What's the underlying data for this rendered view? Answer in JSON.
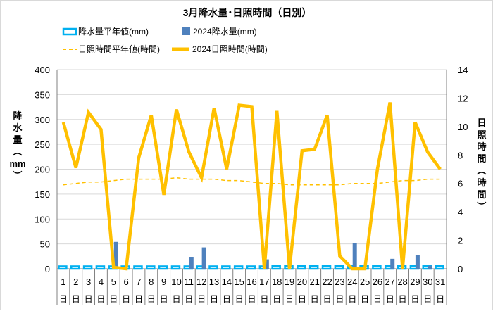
{
  "chart_data": {
    "type": "bar+line",
    "title": "3月降水量･日照時間（日別）",
    "left_axis": {
      "label_chars": [
        "降",
        "水",
        "量",
        "（",
        "mm",
        "）"
      ],
      "ticks": [
        0,
        50,
        100,
        150,
        200,
        250,
        300,
        350,
        400
      ],
      "range": [
        0,
        400
      ]
    },
    "right_axis": {
      "label_chars": [
        "日",
        "照",
        "時",
        "間",
        "（",
        "時",
        "間",
        "）"
      ],
      "ticks": [
        0,
        2,
        4,
        6,
        8,
        10,
        12,
        14
      ],
      "range": [
        0,
        14
      ]
    },
    "categories": [
      "1",
      "2",
      "3",
      "4",
      "5",
      "6",
      "7",
      "8",
      "9",
      "10",
      "11",
      "12",
      "13",
      "14",
      "15",
      "16",
      "17",
      "18",
      "19",
      "20",
      "21",
      "22",
      "23",
      "24",
      "25",
      "26",
      "27",
      "28",
      "29",
      "30",
      "31"
    ],
    "day_suffix": "日",
    "legend": [
      {
        "name": "降水量平年値(mm)",
        "style": "hollow-bar"
      },
      {
        "name": "2024降水量(mm)",
        "style": "bar"
      },
      {
        "name": "日照時間平年値(時間)",
        "style": "dashed-line"
      },
      {
        "name": "2024日照時間(時間)",
        "style": "line"
      }
    ],
    "series": [
      {
        "name": "降水量平年値(mm)",
        "axis": "left",
        "values": [
          5,
          5,
          5,
          5,
          5,
          5,
          5,
          5,
          5,
          5,
          5,
          5,
          5,
          5,
          5,
          5,
          5,
          6,
          6,
          6,
          6,
          6,
          6,
          6,
          6,
          6,
          6,
          6,
          6,
          6,
          6
        ]
      },
      {
        "name": "2024降水量(mm)",
        "axis": "left",
        "values": [
          0,
          0,
          0,
          0,
          54,
          0,
          0,
          0,
          0,
          0,
          24,
          43,
          0,
          0,
          0,
          0,
          19,
          0,
          0,
          0,
          0,
          0,
          0,
          52,
          0,
          0,
          20,
          0,
          28,
          6,
          0
        ]
      },
      {
        "name": "日照時間平年値(時間)",
        "axis": "right",
        "values": [
          5.9,
          6.0,
          6.1,
          6.1,
          6.2,
          6.3,
          6.3,
          6.3,
          6.3,
          6.4,
          6.3,
          6.3,
          6.3,
          6.2,
          6.2,
          6.1,
          6.0,
          6.0,
          5.9,
          5.9,
          5.9,
          5.9,
          5.9,
          6.0,
          6.0,
          6.0,
          6.1,
          6.2,
          6.2,
          6.3,
          6.3
        ]
      },
      {
        "name": "2024日照時間(時間)",
        "axis": "right",
        "values": [
          10.3,
          7.1,
          11.0,
          9.8,
          0.1,
          0.0,
          7.8,
          10.8,
          5.2,
          11.2,
          8.2,
          6.4,
          11.3,
          7.0,
          11.5,
          11.4,
          0.0,
          11.1,
          0.0,
          8.3,
          8.4,
          10.8,
          0.9,
          0.0,
          0.0,
          7.0,
          11.7,
          0.0,
          10.3,
          8.2,
          7.0
        ]
      }
    ],
    "colors": {
      "normal_precip": "#00b0f0",
      "precip_2024": "#4f81bd",
      "normal_sun": "#ffc000",
      "sun_2024": "#ffc000",
      "axis": "#808080",
      "grid": "#d9d9d9"
    },
    "grid": true,
    "legend_position": "top-left"
  }
}
